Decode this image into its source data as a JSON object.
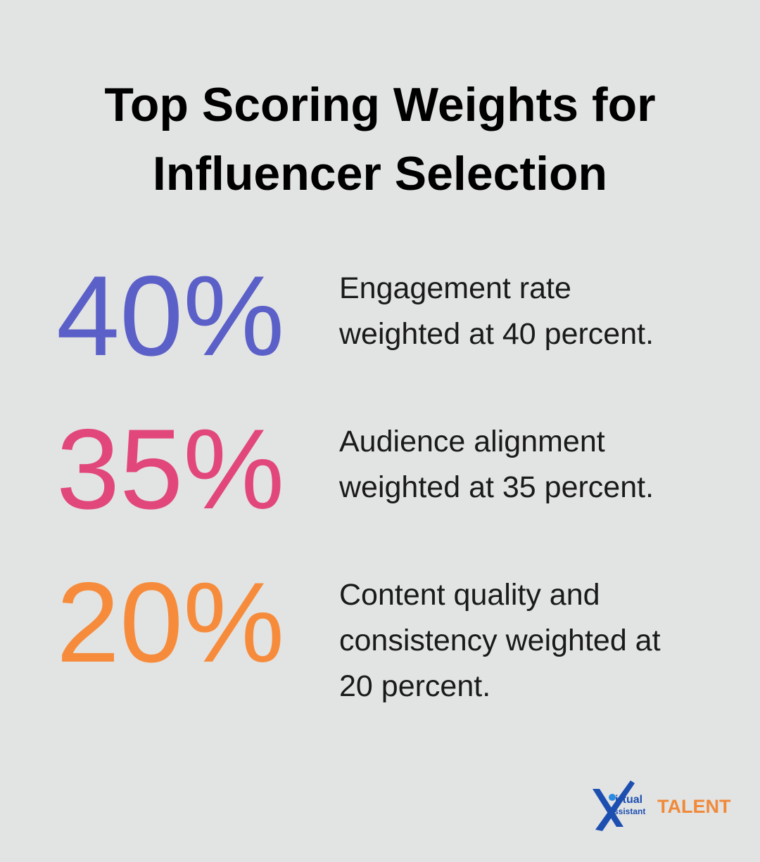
{
  "header": {
    "title_lines": [
      "Top Scoring Weights for",
      "Influencer Selection"
    ]
  },
  "stats": [
    {
      "value": "40%",
      "color": "#5b5fc8",
      "lines": [
        "Engagement rate",
        "weighted at 40 percent."
      ]
    },
    {
      "value": "35%",
      "color": "#e2477c",
      "lines": [
        "Audience alignment",
        "weighted at 35 percent."
      ]
    },
    {
      "value": "20%",
      "color": "#f68c3b",
      "lines": [
        "Content quality and",
        "consistency weighted at",
        "20 percent."
      ]
    }
  ],
  "logo": {
    "line1": "irtual",
    "line2": "ssistant",
    "brand": "TALENT"
  }
}
